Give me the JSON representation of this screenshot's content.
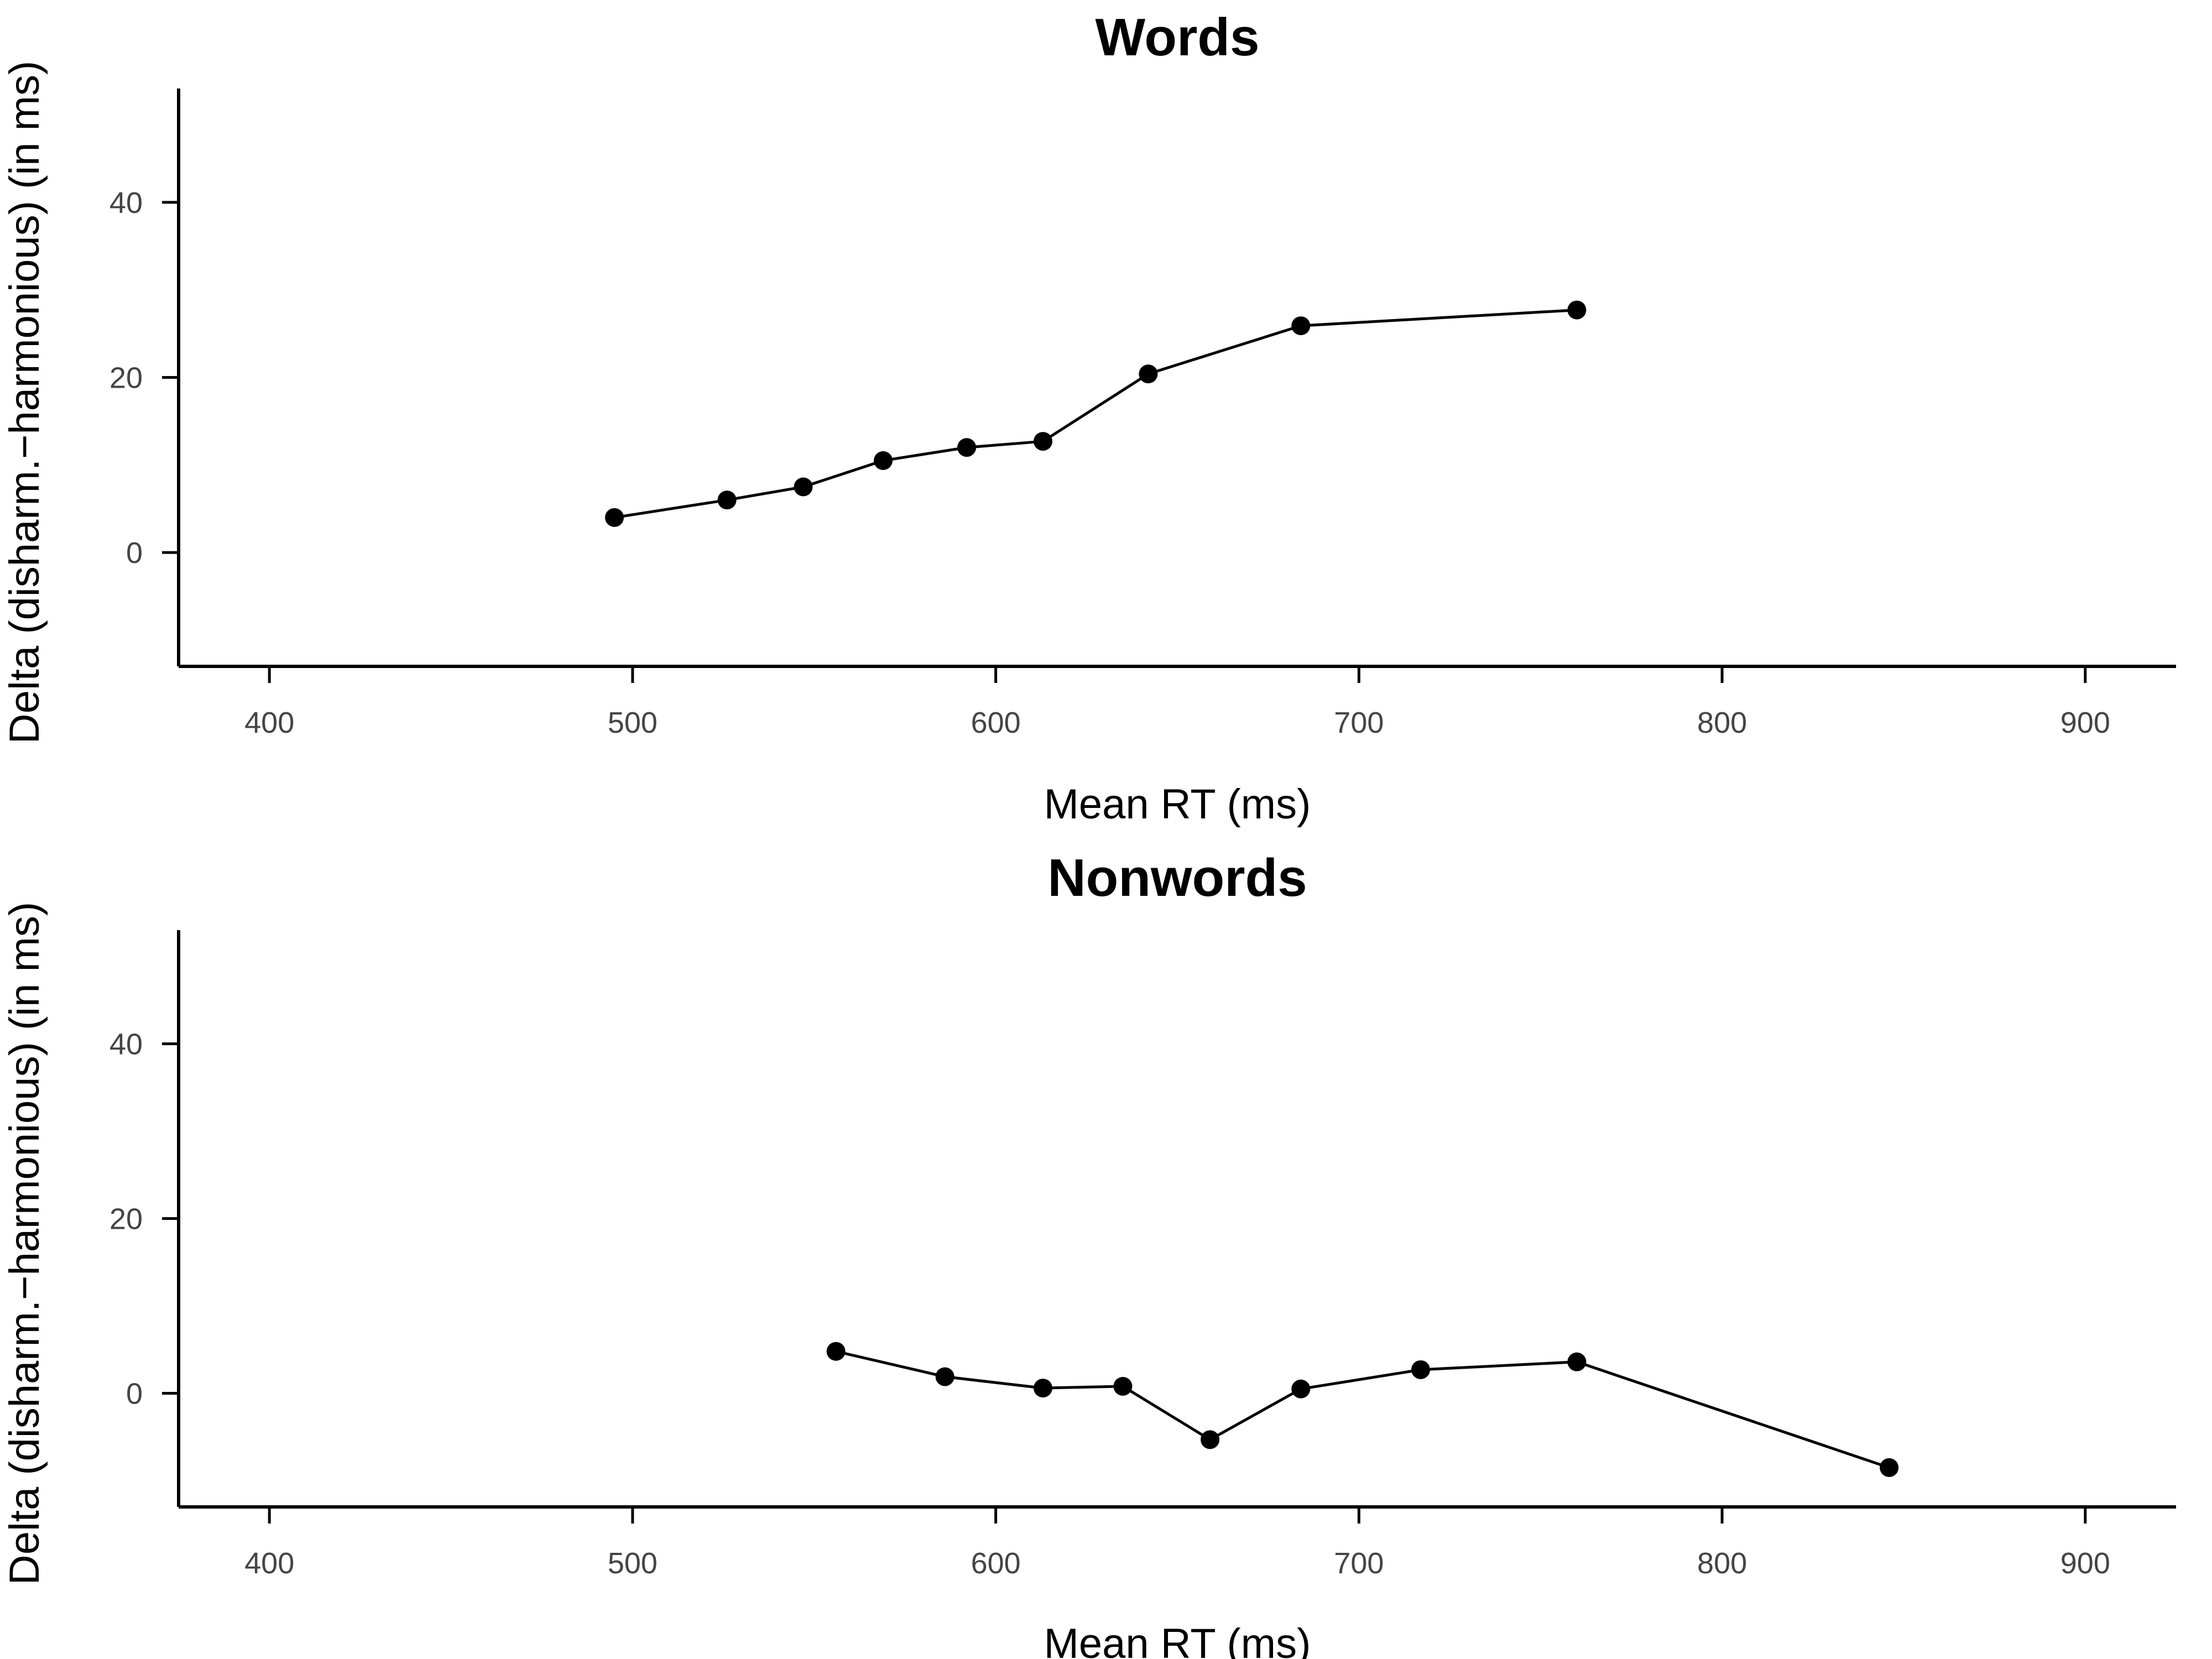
{
  "chart_data": [
    {
      "type": "line",
      "title": "Words",
      "xlabel": "Mean RT (ms)",
      "ylabel": "Delta (disharm.−harmonious) (in ms)",
      "xlim": [
        375,
        925
      ],
      "ylim": [
        -13,
        53
      ],
      "xticks": [
        400,
        500,
        600,
        700,
        800,
        900
      ],
      "yticks": [
        0,
        20,
        40
      ],
      "grid": false,
      "series": [
        {
          "x": [
            495,
            526,
            547,
            569,
            592,
            613,
            642,
            684,
            760
          ],
          "y": [
            4,
            6,
            7.5,
            10.5,
            12,
            12.7,
            20.4,
            25.9,
            27.7
          ]
        }
      ]
    },
    {
      "type": "line",
      "title": "Nonwords",
      "xlabel": "Mean RT (ms)",
      "ylabel": "Delta (disharm.−harmonious) (in ms)",
      "xlim": [
        375,
        925
      ],
      "ylim": [
        -13,
        53
      ],
      "xticks": [
        400,
        500,
        600,
        700,
        800,
        900
      ],
      "yticks": [
        0,
        20,
        40
      ],
      "grid": false,
      "series": [
        {
          "x": [
            556,
            586,
            613,
            635,
            659,
            684,
            717,
            760,
            846
          ],
          "y": [
            4.8,
            1.9,
            0.6,
            0.8,
            -5.3,
            0.5,
            2.7,
            3.6,
            -8.5
          ]
        }
      ]
    }
  ]
}
